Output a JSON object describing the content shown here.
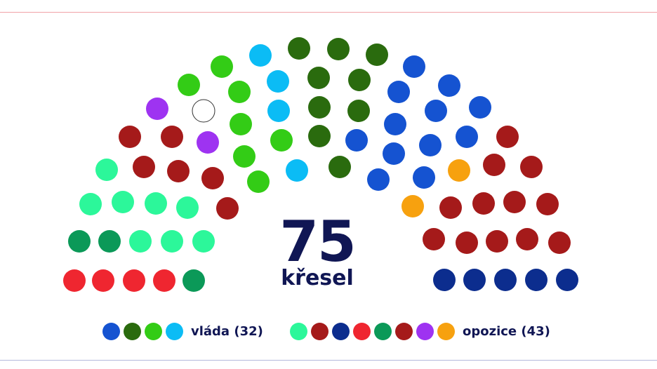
{
  "chart_data": {
    "type": "parliament",
    "total_seats": 75,
    "center_label": {
      "number": "75",
      "unit": "křesel"
    },
    "blocs": [
      {
        "name": "vláda",
        "seats": 32,
        "label": "vláda (32)",
        "party_colors": [
          "#1553d1",
          "#2a6b0e",
          "#33cc16",
          "#0bbcf5"
        ]
      },
      {
        "name": "opozice",
        "seats": 43,
        "label": "opozice (43)",
        "party_colors": [
          "#2cf79a",
          "#a51a1a",
          "#0c2d8e",
          "#ef2630",
          "#0b9958",
          "#a51a1a",
          "#9e33f1",
          "#f7a10f"
        ]
      }
    ],
    "seat_colors": {
      "white": "#ffffff",
      "purple": "#9e33f1",
      "lime": "#33cc16",
      "cyan": "#0bbcf5",
      "dkgreen": "#2a6b0e",
      "blue": "#1553d1",
      "orange": "#f7a10f",
      "red": "#a51a1a",
      "mint": "#2cf79a",
      "emerald": "#0b9958",
      "brightred": "#ef2630",
      "navy": "#0c2d8e"
    },
    "legend_placement": "bottom"
  }
}
